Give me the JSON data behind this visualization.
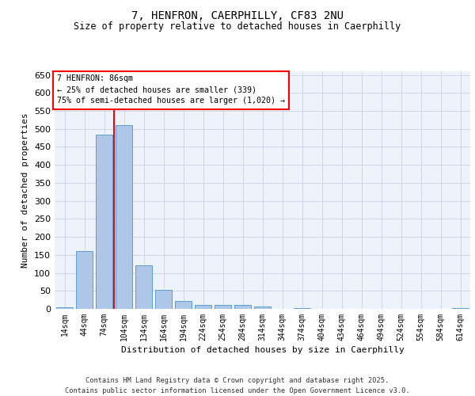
{
  "title_line1": "7, HENFRON, CAERPHILLY, CF83 2NU",
  "title_line2": "Size of property relative to detached houses in Caerphilly",
  "xlabel": "Distribution of detached houses by size in Caerphilly",
  "ylabel": "Number of detached properties",
  "categories": [
    "14sqm",
    "44sqm",
    "74sqm",
    "104sqm",
    "134sqm",
    "164sqm",
    "194sqm",
    "224sqm",
    "254sqm",
    "284sqm",
    "314sqm",
    "344sqm",
    "374sqm",
    "404sqm",
    "434sqm",
    "464sqm",
    "494sqm",
    "524sqm",
    "554sqm",
    "584sqm",
    "614sqm"
  ],
  "bar_values": [
    4,
    160,
    483,
    510,
    122,
    52,
    22,
    12,
    10,
    10,
    7,
    0,
    2,
    0,
    0,
    0,
    0,
    0,
    0,
    0,
    2
  ],
  "bar_color": "#aec6e8",
  "bar_edge_color": "#5a9fd4",
  "red_line_x": 2.5,
  "annotation_line1": "7 HENFRON: 86sqm",
  "annotation_line2": "← 25% of detached houses are smaller (339)",
  "annotation_line3": "75% of semi-detached houses are larger (1,020) →",
  "ylim": [
    0,
    660
  ],
  "yticks": [
    0,
    50,
    100,
    150,
    200,
    250,
    300,
    350,
    400,
    450,
    500,
    550,
    600,
    650
  ],
  "footer_line1": "Contains HM Land Registry data © Crown copyright and database right 2025.",
  "footer_line2": "Contains public sector information licensed under the Open Government Licence v3.0.",
  "bg_color": "#eef2fa",
  "grid_color": "#c8d4e8"
}
